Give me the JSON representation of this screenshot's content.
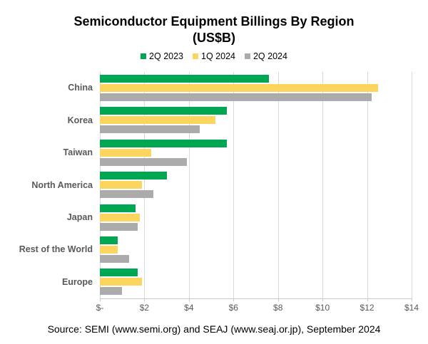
{
  "title": {
    "line1": "Semiconductor Equipment Billings By Region",
    "line2": "(US$B)"
  },
  "source": "Source: SEMI (www.semi.org) and SEAJ (www.seaj.or.jp), September 2024",
  "colors": {
    "series_green": "#00A651",
    "series_gold": "#FBD55E",
    "series_gray": "#ABABAB",
    "gridline": "#D9D9D9",
    "axis_text": "#595959",
    "category_text": "#595959",
    "title_text": "#000000"
  },
  "chart_data": {
    "type": "bar",
    "orientation": "horizontal",
    "title": "Semiconductor Equipment Billings By Region (US$B)",
    "xlabel": "",
    "ylabel": "",
    "categories": [
      "China",
      "Korea",
      "Taiwan",
      "North America",
      "Japan",
      "Rest of the World",
      "Europe"
    ],
    "series": [
      {
        "name": "2Q 2023",
        "color": "#00A651",
        "values": [
          7.6,
          5.7,
          5.7,
          3.0,
          1.6,
          0.8,
          1.7
        ]
      },
      {
        "name": "1Q 2024",
        "color": "#FBD55E",
        "values": [
          12.5,
          5.2,
          2.3,
          1.9,
          1.8,
          0.8,
          1.9
        ]
      },
      {
        "name": "2Q 2024",
        "color": "#ABABAB",
        "values": [
          12.2,
          4.5,
          3.9,
          2.4,
          1.7,
          1.3,
          1.0
        ]
      }
    ],
    "xlim": [
      0,
      14
    ],
    "x_tick_values": [
      0,
      2,
      4,
      6,
      8,
      10,
      12,
      14
    ],
    "x_ticks": [
      "$-",
      "$2",
      "$4",
      "$6",
      "$8",
      "$10",
      "$12",
      "$14"
    ],
    "grid": true,
    "legend_position": "top"
  }
}
